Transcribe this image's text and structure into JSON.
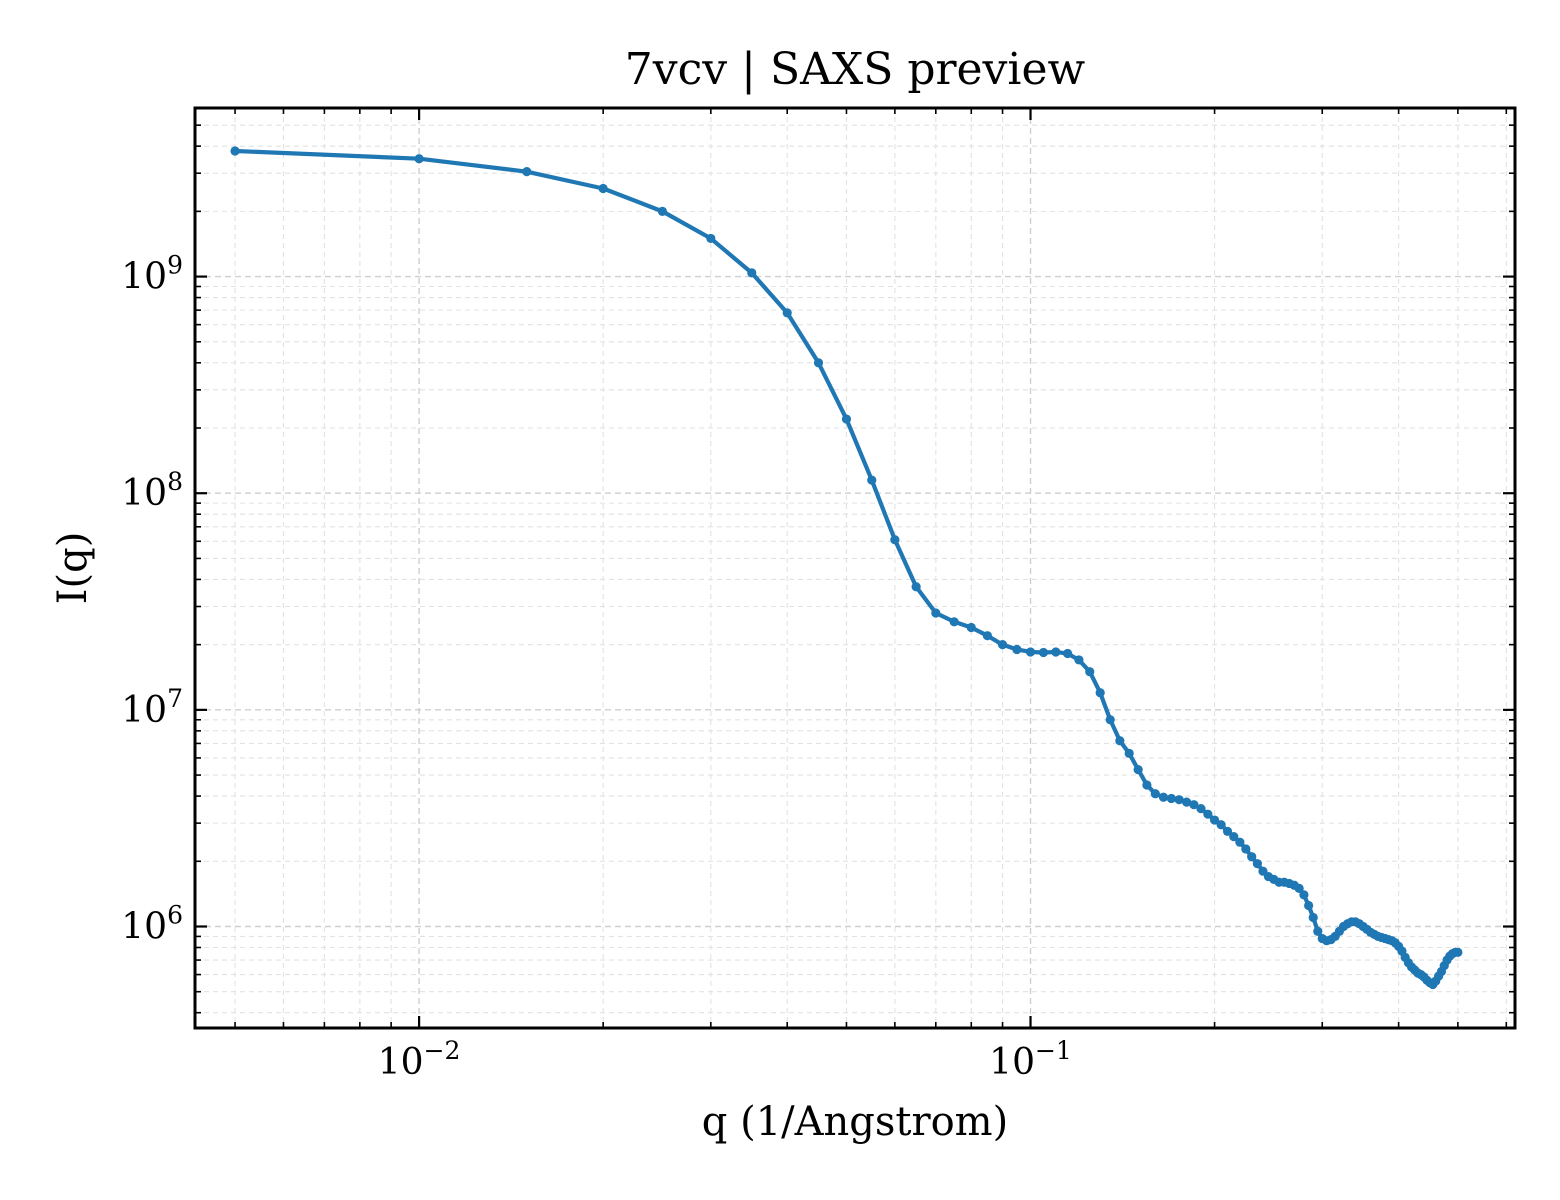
{
  "chart_data": {
    "type": "line",
    "title": "7vcv | SAXS preview",
    "xlabel": "q (1/Angstrom)",
    "ylabel": "I(q)",
    "xscale": "log",
    "yscale": "log",
    "xlim": [
      0.0043,
      0.62
    ],
    "ylim": [
      340000,
      6000000000
    ],
    "grid": true,
    "grid_which": "both",
    "legend": "none",
    "x_ticks": [
      {
        "base": "10",
        "exp": "−2",
        "value": 0.01
      },
      {
        "base": "10",
        "exp": "−1",
        "value": 0.1
      }
    ],
    "y_ticks": [
      {
        "base": "10",
        "exp": "6",
        "value": 1000000
      },
      {
        "base": "10",
        "exp": "7",
        "value": 10000000
      },
      {
        "base": "10",
        "exp": "8",
        "value": 100000000
      },
      {
        "base": "10",
        "exp": "9",
        "value": 1000000000
      }
    ],
    "series": [
      {
        "color": "#1f77b4",
        "marker": "circle",
        "x": [
          0.005,
          0.01,
          0.015,
          0.02,
          0.025,
          0.03,
          0.035,
          0.04,
          0.045,
          0.05,
          0.055,
          0.06,
          0.065,
          0.07,
          0.075,
          0.08,
          0.085,
          0.09,
          0.095,
          0.1,
          0.105,
          0.11,
          0.115,
          0.12,
          0.125,
          0.13,
          0.135,
          0.14,
          0.145,
          0.15,
          0.155,
          0.16,
          0.165,
          0.17,
          0.175,
          0.18,
          0.185,
          0.19,
          0.195,
          0.2,
          0.205,
          0.21,
          0.215,
          0.22,
          0.225,
          0.23,
          0.235,
          0.24,
          0.245,
          0.25,
          0.255,
          0.26,
          0.265,
          0.27,
          0.275,
          0.28,
          0.285,
          0.29,
          0.295,
          0.3,
          0.305,
          0.31,
          0.315,
          0.32,
          0.325,
          0.33,
          0.335,
          0.34,
          0.345,
          0.35,
          0.355,
          0.36,
          0.365,
          0.37,
          0.375,
          0.38,
          0.385,
          0.39,
          0.395,
          0.4,
          0.405,
          0.41,
          0.415,
          0.42,
          0.425,
          0.43,
          0.435,
          0.44,
          0.445,
          0.45,
          0.455,
          0.46,
          0.465,
          0.47,
          0.475,
          0.48,
          0.485,
          0.49,
          0.495,
          0.5
        ],
        "y": [
          3800000000,
          3500000000,
          3050000000,
          2550000000,
          2000000000,
          1500000000,
          1040000000,
          680000000,
          400000000,
          220000000,
          115000000,
          61000000,
          37000000,
          28000000,
          25500000,
          24000000,
          22000000,
          20000000,
          19000000,
          18500000,
          18400000,
          18500000,
          18200000,
          17000000,
          15000000,
          12000000,
          9000000,
          7200000,
          6300000,
          5300000,
          4500000,
          4100000,
          3950000,
          3900000,
          3850000,
          3750000,
          3650000,
          3500000,
          3300000,
          3100000,
          2950000,
          2750000,
          2600000,
          2450000,
          2280000,
          2100000,
          1950000,
          1800000,
          1700000,
          1650000,
          1600000,
          1600000,
          1580000,
          1550000,
          1500000,
          1400000,
          1250000,
          1100000,
          950000,
          880000,
          860000,
          870000,
          900000,
          950000,
          1000000,
          1030000,
          1050000,
          1050000,
          1030000,
          1000000,
          970000,
          940000,
          920000,
          900000,
          890000,
          880000,
          870000,
          860000,
          840000,
          810000,
          770000,
          720000,
          680000,
          650000,
          630000,
          610000,
          600000,
          585000,
          565000,
          550000,
          540000,
          560000,
          590000,
          620000,
          660000,
          700000,
          730000,
          750000,
          760000,
          760000
        ]
      }
    ]
  }
}
